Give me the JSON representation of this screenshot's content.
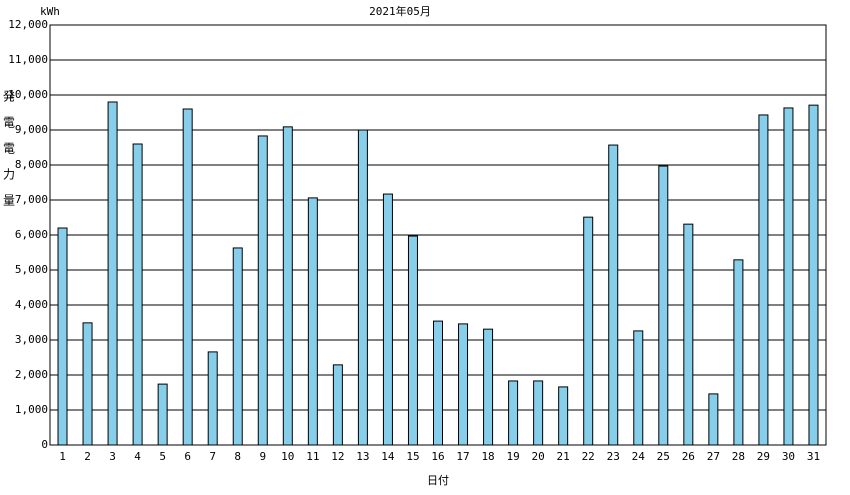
{
  "chart_data": {
    "type": "bar",
    "title": "2021年05月",
    "y_unit": "kWh",
    "y_label": "発電電力量",
    "x_label": "日付",
    "categories": [
      "1",
      "2",
      "3",
      "4",
      "5",
      "6",
      "7",
      "8",
      "9",
      "10",
      "11",
      "12",
      "13",
      "14",
      "15",
      "16",
      "17",
      "18",
      "19",
      "20",
      "21",
      "22",
      "23",
      "24",
      "25",
      "26",
      "27",
      "28",
      "29",
      "30",
      "31"
    ],
    "values": [
      6200,
      3490,
      9800,
      8600,
      1740,
      9600,
      2660,
      5630,
      8830,
      9090,
      7060,
      2290,
      9000,
      7170,
      5970,
      3540,
      3460,
      3310,
      1830,
      1830,
      1660,
      6510,
      8570,
      3260,
      7970,
      6310,
      1460,
      5290,
      9430,
      9630,
      9710
    ],
    "color": "#87ceeb",
    "ylim": [
      0,
      12000
    ],
    "yticks": [
      0,
      {
        "value": 1000,
        "label": "1,000"
      },
      {
        "value": 2000,
        "label": "2,000"
      },
      {
        "value": 3000,
        "label": "3,000"
      },
      {
        "value": 4000,
        "label": "4,000"
      },
      {
        "value": 5000,
        "label": "5,000"
      },
      {
        "value": 6000,
        "label": "6,000"
      },
      {
        "value": 7000,
        "label": "7,000"
      },
      {
        "value": 8000,
        "label": "8,000"
      },
      {
        "value": 9000,
        "label": "9,000"
      },
      {
        "value": 10000,
        "label": "10,000"
      },
      {
        "value": 11000,
        "label": "11,000"
      },
      {
        "value": 12000,
        "label": "12,000"
      }
    ],
    "grid": true
  }
}
